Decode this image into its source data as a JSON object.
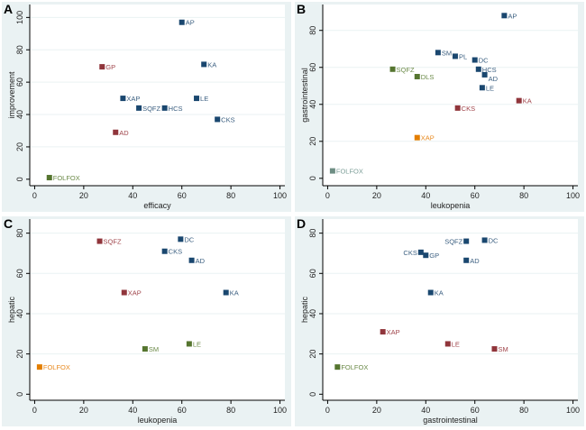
{
  "colors": {
    "blue": "#1a476f",
    "red": "#90353b",
    "green": "#55752f",
    "orange": "#e37e00",
    "gray": "#6e8e84"
  },
  "chart_data": [
    {
      "type": "scatter",
      "panel_label": "A",
      "xlabel": "efficacy",
      "ylabel": "improvement",
      "xlim": [
        -2,
        102
      ],
      "ylim": [
        -4,
        108
      ],
      "xticks": [
        0,
        20,
        40,
        60,
        80,
        100
      ],
      "yticks": [
        0,
        20,
        40,
        60,
        80,
        100
      ],
      "grid": true,
      "points": [
        {
          "label": "AP",
          "x": 60,
          "y": 97,
          "color": "blue"
        },
        {
          "label": "GP",
          "x": 27.5,
          "y": 69.5,
          "color": "red"
        },
        {
          "label": "KA",
          "x": 69,
          "y": 71,
          "color": "blue"
        },
        {
          "label": "XAP",
          "x": 36,
          "y": 50,
          "color": "blue"
        },
        {
          "label": "SQFZ",
          "x": 42.5,
          "y": 44,
          "color": "blue"
        },
        {
          "label": "HCS",
          "x": 53,
          "y": 44,
          "color": "blue"
        },
        {
          "label": "LE",
          "x": 66,
          "y": 50,
          "color": "blue"
        },
        {
          "label": "CKS",
          "x": 74.5,
          "y": 37,
          "color": "blue"
        },
        {
          "label": "AD",
          "x": 33,
          "y": 29,
          "color": "red"
        },
        {
          "label": "FOLFOX",
          "x": 6,
          "y": 1,
          "color": "green"
        }
      ]
    },
    {
      "type": "scatter",
      "panel_label": "B",
      "xlabel": "leukopenia",
      "ylabel": "gastrointestinal",
      "xlim": [
        -2,
        102
      ],
      "ylim": [
        -4,
        94
      ],
      "xticks": [
        0,
        20,
        40,
        60,
        80,
        100
      ],
      "yticks": [
        0,
        20,
        40,
        60,
        80
      ],
      "grid": true,
      "points": [
        {
          "label": "AP",
          "x": 72,
          "y": 88,
          "color": "blue"
        },
        {
          "label": "SM",
          "x": 45,
          "y": 68,
          "color": "blue"
        },
        {
          "label": "PL",
          "x": 52,
          "y": 66,
          "color": "blue"
        },
        {
          "label": "DC",
          "x": 60,
          "y": 64,
          "color": "blue"
        },
        {
          "label": "HCS",
          "x": 61.5,
          "y": 59,
          "color": "blue"
        },
        {
          "label": "AD",
          "x": 64,
          "y": 56,
          "color": "blue"
        },
        {
          "label": "LE",
          "x": 63,
          "y": 49,
          "color": "blue"
        },
        {
          "label": "SQFZ",
          "x": 26.5,
          "y": 59,
          "color": "green"
        },
        {
          "label": "DLS",
          "x": 36.5,
          "y": 55,
          "color": "green"
        },
        {
          "label": "KA",
          "x": 78,
          "y": 42,
          "color": "red"
        },
        {
          "label": "CKS",
          "x": 53,
          "y": 38,
          "color": "red"
        },
        {
          "label": "XAP",
          "x": 36.5,
          "y": 22,
          "color": "orange"
        },
        {
          "label": "FOLFOX",
          "x": 2,
          "y": 4,
          "color": "gray"
        }
      ]
    },
    {
      "type": "scatter",
      "panel_label": "C",
      "xlabel": "leukopenia",
      "ylabel": "hepatic",
      "xlim": [
        -2,
        102
      ],
      "ylim": [
        -3,
        87
      ],
      "xticks": [
        0,
        20,
        40,
        60,
        80,
        100
      ],
      "yticks": [
        0,
        20,
        40,
        60,
        80
      ],
      "grid": true,
      "points": [
        {
          "label": "SQFZ",
          "x": 26.5,
          "y": 76,
          "color": "red"
        },
        {
          "label": "DC",
          "x": 59.5,
          "y": 77,
          "color": "blue"
        },
        {
          "label": "CKS",
          "x": 53,
          "y": 71,
          "color": "blue"
        },
        {
          "label": "AD",
          "x": 64,
          "y": 66.5,
          "color": "blue"
        },
        {
          "label": "KA",
          "x": 78,
          "y": 50.5,
          "color": "blue"
        },
        {
          "label": "XAP",
          "x": 36.5,
          "y": 50.5,
          "color": "red"
        },
        {
          "label": "LE",
          "x": 63,
          "y": 25,
          "color": "green"
        },
        {
          "label": "SM",
          "x": 45,
          "y": 22.5,
          "color": "green"
        },
        {
          "label": "FOLFOX",
          "x": 2,
          "y": 13.5,
          "color": "orange"
        }
      ]
    },
    {
      "type": "scatter",
      "panel_label": "D",
      "xlabel": "gastrointestinal",
      "ylabel": "hepatic",
      "xlim": [
        -2,
        102
      ],
      "ylim": [
        -3,
        87
      ],
      "xticks": [
        0,
        20,
        40,
        60,
        80,
        100
      ],
      "yticks": [
        0,
        20,
        40,
        60,
        80
      ],
      "grid": true,
      "points": [
        {
          "label": "SQFZ",
          "x": 56.5,
          "y": 76,
          "color": "blue"
        },
        {
          "label": "DC",
          "x": 64,
          "y": 76.5,
          "color": "blue"
        },
        {
          "label": "CKS",
          "x": 38,
          "y": 70.5,
          "color": "blue"
        },
        {
          "label": "GP",
          "x": 40,
          "y": 69,
          "color": "blue"
        },
        {
          "label": "AD",
          "x": 56.5,
          "y": 66.5,
          "color": "blue"
        },
        {
          "label": "KA",
          "x": 42,
          "y": 50.5,
          "color": "blue"
        },
        {
          "label": "XAP",
          "x": 22.5,
          "y": 31,
          "color": "red"
        },
        {
          "label": "LE",
          "x": 49,
          "y": 25,
          "color": "red"
        },
        {
          "label": "SM",
          "x": 68,
          "y": 22.5,
          "color": "red"
        },
        {
          "label": "FOLFOX",
          "x": 4,
          "y": 13.5,
          "color": "green"
        }
      ]
    }
  ]
}
